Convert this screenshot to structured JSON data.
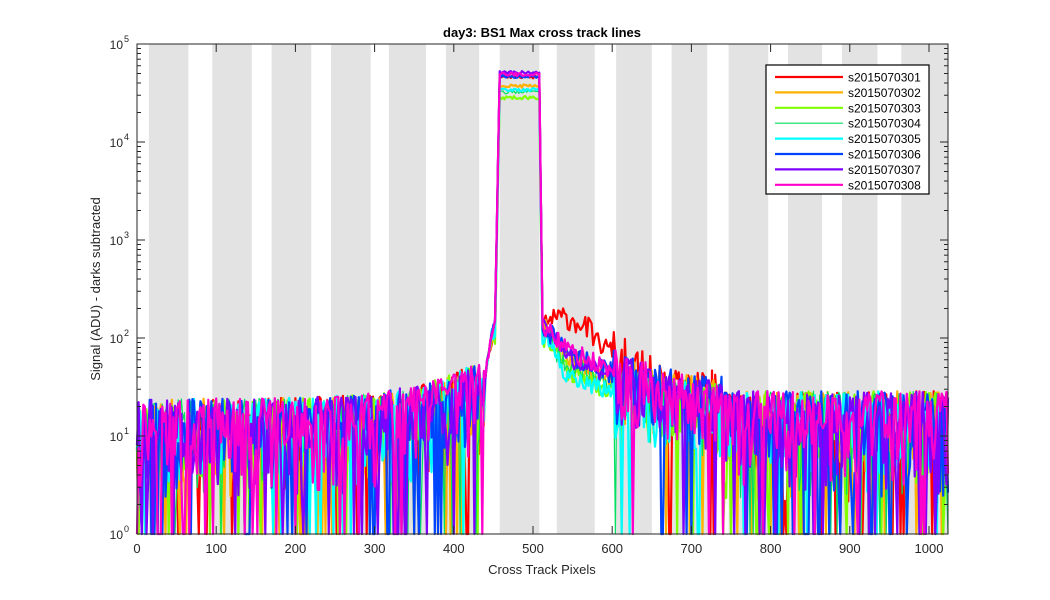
{
  "chart_data": {
    "type": "line",
    "title": "day3: BS1  Max cross track lines",
    "xlabel": "Cross Track Pixels",
    "ylabel": "Signal (ADU) - darks subtracted",
    "xlim": [
      0,
      1024
    ],
    "ylim": [
      1,
      100000
    ],
    "yscale": "log",
    "grid": false,
    "legend_position": "top-right",
    "x_ticks": [
      0,
      100,
      200,
      300,
      400,
      500,
      600,
      700,
      800,
      900,
      1000
    ],
    "x_tick_labels": [
      "0",
      "100",
      "200",
      "300",
      "400",
      "500",
      "600",
      "700",
      "800",
      "900",
      "1000"
    ],
    "y_ticks": [
      1,
      10,
      100,
      1000,
      10000,
      100000
    ],
    "y_tick_bases": [
      "10",
      "10",
      "10",
      "10",
      "10",
      "10"
    ],
    "y_tick_exps": [
      "0",
      "1",
      "2",
      "3",
      "4",
      "5"
    ],
    "shaded_bands": [
      [
        15,
        65
      ],
      [
        95,
        145
      ],
      [
        170,
        220
      ],
      [
        245,
        295
      ],
      [
        318,
        365
      ],
      [
        390,
        432
      ],
      [
        458,
        508
      ],
      [
        530,
        578
      ],
      [
        605,
        650
      ],
      [
        675,
        720
      ],
      [
        747,
        797
      ],
      [
        822,
        865
      ],
      [
        890,
        935
      ],
      [
        965,
        1024
      ]
    ],
    "series": [
      {
        "name": "s2015070301",
        "color": "#ff0000",
        "width": 2.2,
        "plateau": 47000,
        "shoulder": [
          [
            510,
            150
          ],
          [
            540,
            165
          ],
          [
            570,
            130
          ],
          [
            580,
            95
          ],
          [
            620,
            55
          ],
          [
            680,
            28
          ]
        ],
        "seed": 11
      },
      {
        "name": "s2015070302",
        "color": "#ffb000",
        "width": 2.2,
        "plateau": 38000,
        "shoulder": [
          [
            510,
            140
          ],
          [
            540,
            70
          ],
          [
            580,
            45
          ],
          [
            650,
            30
          ],
          [
            720,
            22
          ]
        ],
        "seed": 23
      },
      {
        "name": "s2015070303",
        "color": "#80ff00",
        "width": 2.2,
        "plateau": 29000,
        "shoulder": [
          [
            510,
            120
          ],
          [
            540,
            50
          ],
          [
            580,
            35
          ],
          [
            650,
            25
          ],
          [
            720,
            20
          ]
        ],
        "seed": 37
      },
      {
        "name": "s2015070304",
        "color": "#00e060",
        "width": 1.2,
        "plateau": 33000,
        "shoulder": [
          [
            510,
            125
          ],
          [
            540,
            55
          ],
          [
            580,
            38
          ],
          [
            650,
            26
          ],
          [
            720,
            20
          ]
        ],
        "seed": 41
      },
      {
        "name": "s2015070305",
        "color": "#00ffff",
        "width": 2.2,
        "plateau": 35000,
        "shoulder": [
          [
            510,
            120
          ],
          [
            540,
            45
          ],
          [
            580,
            32
          ],
          [
            650,
            24
          ],
          [
            720,
            20
          ]
        ],
        "seed": 53
      },
      {
        "name": "s2015070306",
        "color": "#0044ff",
        "width": 2.2,
        "plateau": 48000,
        "shoulder": [
          [
            510,
            145
          ],
          [
            540,
            75
          ],
          [
            580,
            52
          ],
          [
            650,
            32
          ],
          [
            720,
            24
          ]
        ],
        "seed": 67
      },
      {
        "name": "s2015070307",
        "color": "#8000ff",
        "width": 2.2,
        "plateau": 52000,
        "shoulder": [
          [
            510,
            150
          ],
          [
            540,
            70
          ],
          [
            580,
            48
          ],
          [
            650,
            30
          ],
          [
            720,
            22
          ]
        ],
        "seed": 79
      },
      {
        "name": "s2015070308",
        "color": "#ff00cc",
        "width": 2.2,
        "plateau": 50000,
        "shoulder": [
          [
            510,
            150
          ],
          [
            540,
            80
          ],
          [
            580,
            55
          ],
          [
            650,
            33
          ],
          [
            720,
            24
          ]
        ],
        "seed": 97
      }
    ]
  }
}
